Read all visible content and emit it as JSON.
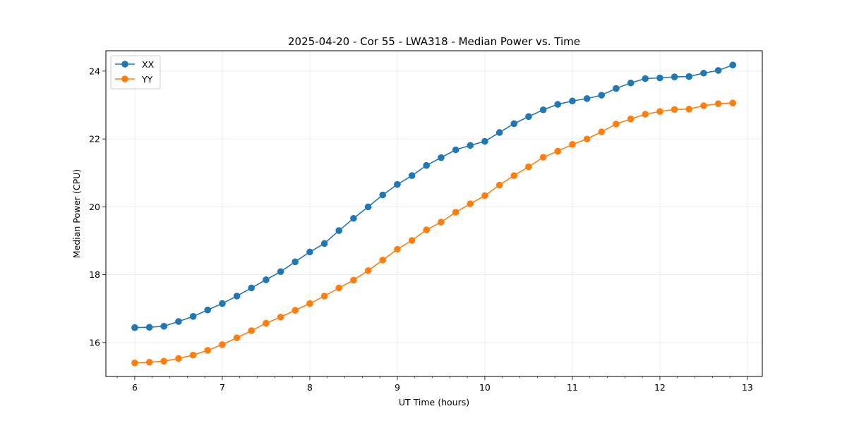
{
  "chart_data": {
    "type": "line",
    "title": "2025-04-20 - Cor 55 - LWA318 - Median Power vs. Time",
    "xlabel": "UT Time (hours)",
    "ylabel": "Median Power (CPU)",
    "xlim": [
      5.67,
      13.17
    ],
    "ylim": [
      15.0,
      24.6
    ],
    "xticks": [
      6,
      7,
      8,
      9,
      10,
      11,
      12,
      13
    ],
    "yticks": [
      16,
      18,
      20,
      22,
      24
    ],
    "grid": true,
    "legend": "upper-left",
    "x": [
      6.0,
      6.167,
      6.333,
      6.5,
      6.667,
      6.833,
      7.0,
      7.167,
      7.333,
      7.5,
      7.667,
      7.833,
      8.0,
      8.167,
      8.333,
      8.5,
      8.667,
      8.833,
      9.0,
      9.167,
      9.333,
      9.5,
      9.667,
      9.833,
      10.0,
      10.167,
      10.333,
      10.5,
      10.667,
      10.833,
      11.0,
      11.167,
      11.333,
      11.5,
      11.667,
      11.833,
      12.0,
      12.167,
      12.333,
      12.5,
      12.667,
      12.833
    ],
    "series": [
      {
        "name": "XX",
        "color": "#1f77b4",
        "values": [
          16.44,
          16.45,
          16.48,
          16.62,
          16.77,
          16.96,
          17.15,
          17.37,
          17.61,
          17.85,
          18.09,
          18.38,
          18.67,
          18.92,
          19.3,
          19.66,
          20.0,
          20.35,
          20.66,
          20.92,
          21.22,
          21.45,
          21.68,
          21.81,
          21.93,
          22.19,
          22.45,
          22.66,
          22.86,
          23.02,
          23.12,
          23.19,
          23.29,
          23.49,
          23.65,
          23.78,
          23.8,
          23.83,
          23.84,
          23.94,
          24.02,
          24.18
        ]
      },
      {
        "name": "YY",
        "color": "#ff7f0e",
        "values": [
          15.4,
          15.42,
          15.45,
          15.53,
          15.63,
          15.77,
          15.94,
          16.14,
          16.35,
          16.57,
          16.75,
          16.95,
          17.15,
          17.37,
          17.61,
          17.84,
          18.12,
          18.43,
          18.75,
          19.01,
          19.32,
          19.55,
          19.84,
          20.09,
          20.33,
          20.64,
          20.92,
          21.18,
          21.46,
          21.64,
          21.84,
          22.0,
          22.21,
          22.44,
          22.59,
          22.73,
          22.81,
          22.87,
          22.88,
          22.98,
          23.04,
          23.06
        ]
      }
    ]
  }
}
